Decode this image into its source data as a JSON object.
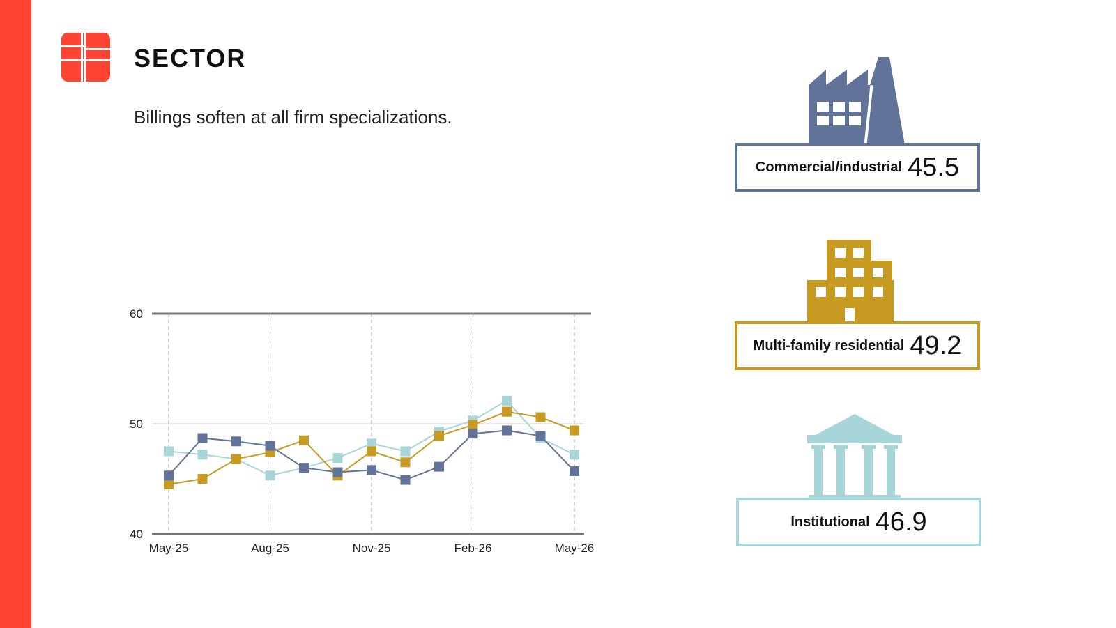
{
  "header": {
    "title": "SECTOR",
    "subtitle": "Billings soften at all firm specializations."
  },
  "colors": {
    "accent": "#ff4433",
    "commercial": "#62739a",
    "multifamily": "#c79a22",
    "institutional": "#a7d5d8"
  },
  "stats": [
    {
      "label": "Commercial/industrial",
      "value": "45.5",
      "icon": "factory-icon",
      "color": "#62739a"
    },
    {
      "label": "Multi-family residential",
      "value": "49.2",
      "icon": "apartment-building-icon",
      "color": "#c79a22"
    },
    {
      "label": "Institutional",
      "value": "46.9",
      "icon": "columned-building-icon",
      "color": "#a7d5d8"
    }
  ],
  "chart_data": {
    "type": "line",
    "x": [
      "May-25",
      "Jun-25",
      "Jul-25",
      "Aug-25",
      "Sep-25",
      "Oct-25",
      "Nov-25",
      "Dec-25",
      "Jan-26",
      "Feb-26",
      "Mar-26",
      "Apr-26",
      "May-26"
    ],
    "xticks": [
      "May-25",
      "Aug-25",
      "Nov-25",
      "Feb-26",
      "May-26"
    ],
    "yticks": [
      40,
      50,
      60
    ],
    "ylim": [
      40,
      60
    ],
    "grid": "vertical dashed at quarterly ticks, horizontal line at 50",
    "series": [
      {
        "name": "Commercial/industrial",
        "color": "#62739a",
        "values": [
          45.3,
          48.7,
          48.4,
          48.0,
          46.0,
          45.6,
          45.8,
          44.9,
          46.1,
          49.1,
          49.4,
          48.9,
          45.7
        ]
      },
      {
        "name": "Multi-family residential",
        "color": "#c79a22",
        "values": [
          44.5,
          45.0,
          46.8,
          47.4,
          48.5,
          45.3,
          47.5,
          46.5,
          48.9,
          49.9,
          51.1,
          50.6,
          49.4
        ]
      },
      {
        "name": "Institutional",
        "color": "#a7d5d8",
        "values": [
          47.5,
          47.2,
          46.8,
          45.3,
          46.0,
          46.9,
          48.2,
          47.5,
          49.3,
          50.3,
          52.1,
          48.7,
          47.2
        ]
      }
    ]
  }
}
